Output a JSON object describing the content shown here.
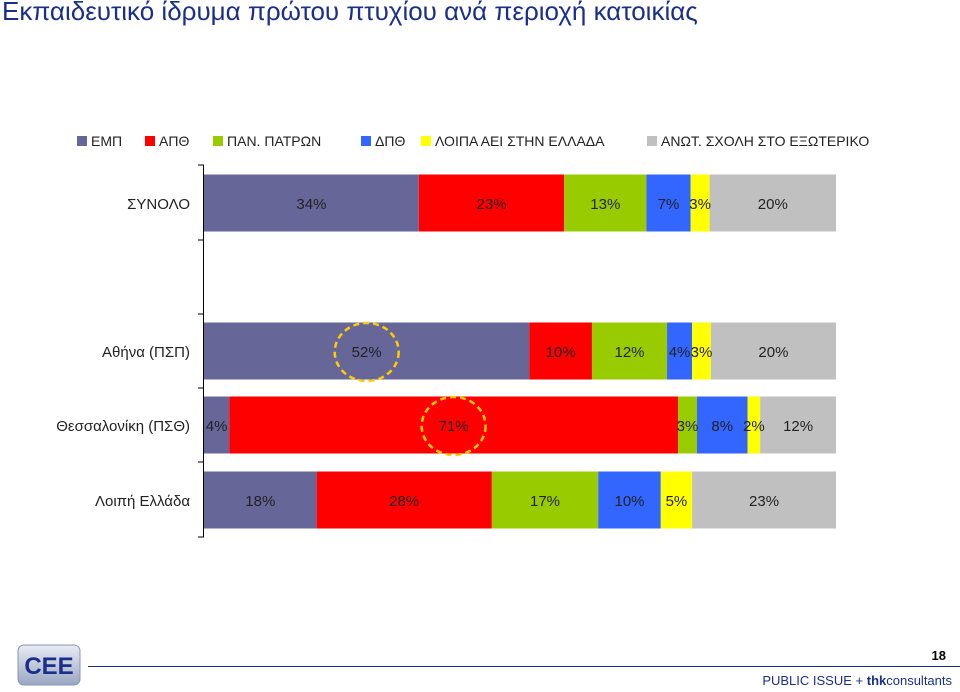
{
  "page": {
    "title": "Εκπαιδευτικό ίδρυμα πρώτου πτυχίου ανά περιοχή κατοικίας",
    "page_number": "18",
    "footer_prefix": "PUBLIC ISSUE + ",
    "footer_brand": "thk",
    "footer_suffix": "consultants",
    "logo_text": "CEE"
  },
  "chart_data": {
    "type": "bar",
    "orientation": "horizontal",
    "stacked": true,
    "percent_labels": true,
    "legend_position": "top",
    "categories": [
      "ΣΥΝΟΛΟ",
      "Αθήνα (ΠΣΠ)",
      "Θεσσαλονίκη (ΠΣΘ)",
      "Λοιπή Ελλάδα"
    ],
    "series": [
      {
        "name": "ΕΜΠ",
        "color": "#666699",
        "values": [
          34,
          52,
          4,
          18
        ]
      },
      {
        "name": "ΑΠΘ",
        "color": "#ff0000",
        "values": [
          23,
          10,
          71,
          28
        ]
      },
      {
        "name": "ΠΑΝ. ΠΑΤΡΩΝ",
        "color": "#99cc00",
        "values": [
          13,
          12,
          3,
          17
        ]
      },
      {
        "name": "ΔΠΘ",
        "color": "#3366ff",
        "values": [
          7,
          4,
          8,
          10
        ]
      },
      {
        "name": "ΛΟΙΠΑ ΑΕΙ ΣΤΗΝ ΕΛΛΑΔΑ",
        "color": "#ffff00",
        "values": [
          3,
          3,
          2,
          5
        ]
      },
      {
        "name": "ΑΝΩΤ. ΣΧΟΛΗ ΣΤΟ ΕΞΩΤΕΡΙΚΟ",
        "color": "#c0c0c0",
        "values": [
          20,
          20,
          12,
          23
        ]
      }
    ],
    "highlights": [
      {
        "category": "Αθήνα (ΠΣΠ)",
        "series": "ΕΜΠ",
        "style": "dashed-circle",
        "color": "#ffcc00"
      },
      {
        "category": "Θεσσαλονίκη (ΠΣΘ)",
        "series": "ΑΠΘ",
        "style": "dashed-circle",
        "color": "#ffcc00"
      }
    ]
  }
}
